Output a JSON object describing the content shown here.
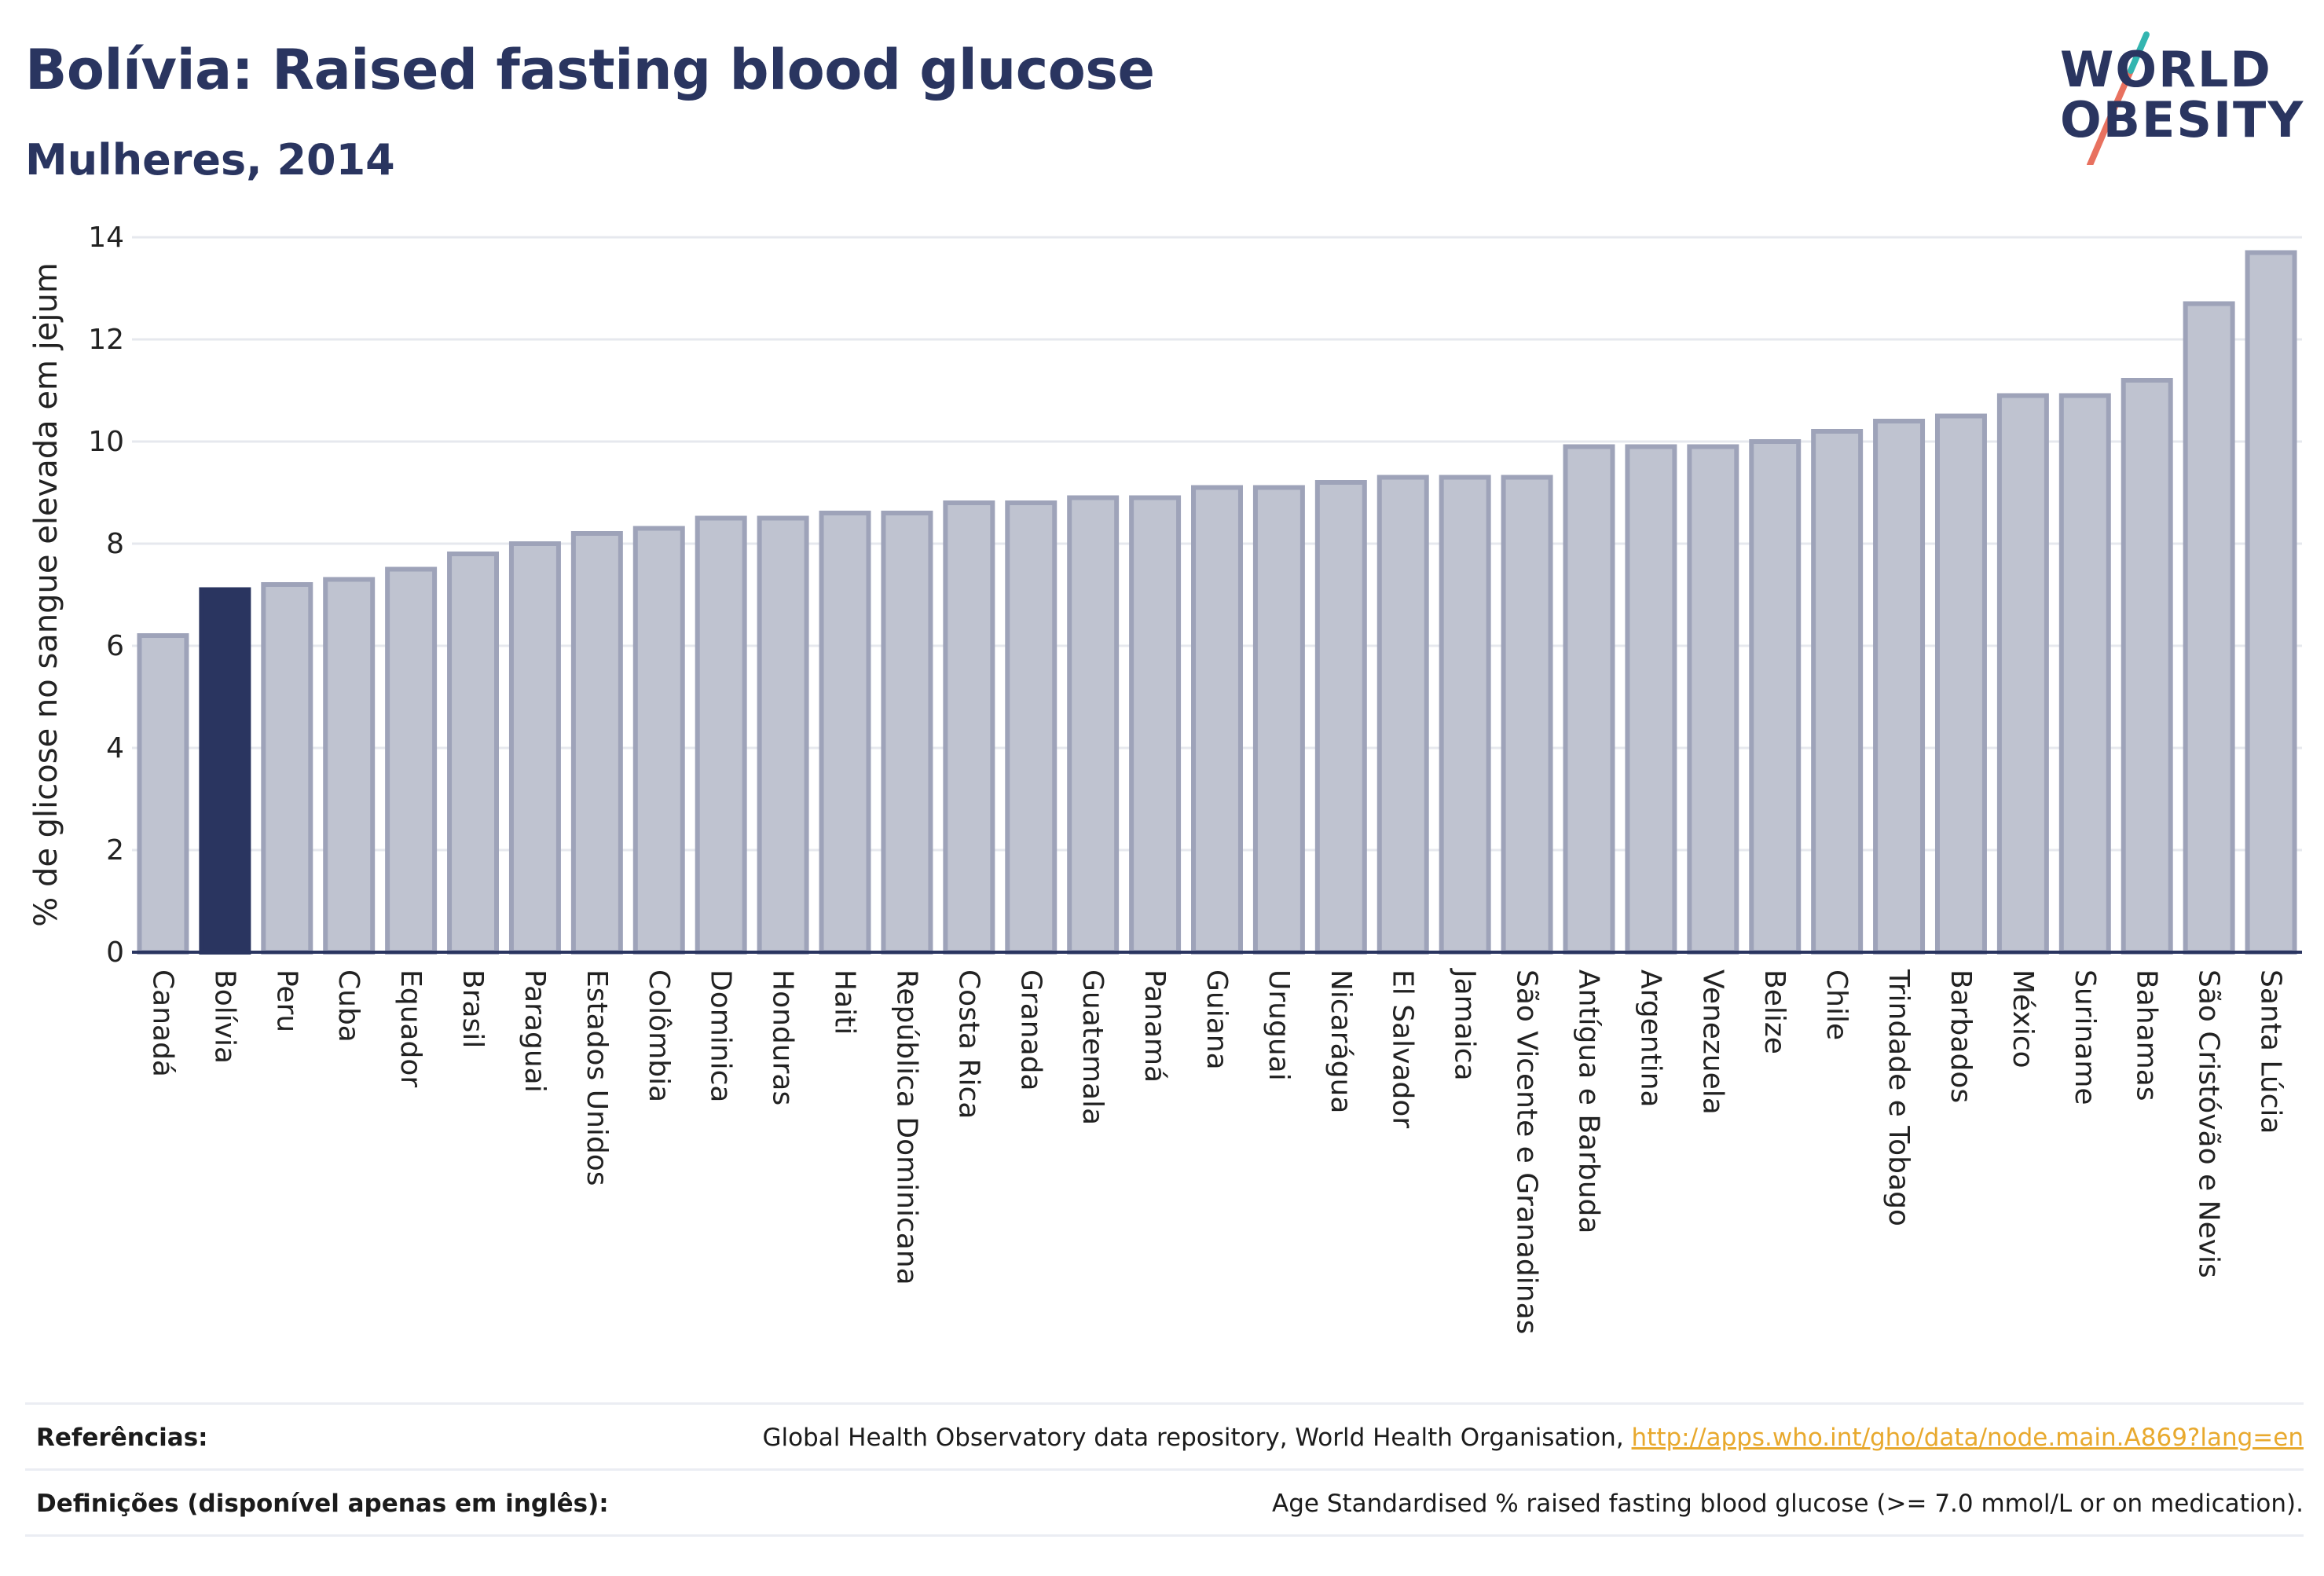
{
  "title": "Bolívia: Raised fasting blood glucose",
  "subtitle": "Mulheres, 2014",
  "logo": {
    "line1": "WORLD",
    "line2": "OBESITY"
  },
  "colors": {
    "highlight": "#2a3560",
    "bar_fill": "#bfc3d0",
    "bar_stroke": "#9ea3b9",
    "grid": "#e6e8ee",
    "logo_teal": "#33b5b0",
    "logo_coral": "#e8715f",
    "link": "#e8a92e"
  },
  "chart_data": {
    "type": "bar",
    "ylabel": "% de glicose no sangue elevada em jejum",
    "xlabel": "",
    "ylim": [
      0,
      14
    ],
    "yticks": [
      "0",
      "2",
      "4",
      "6",
      "8",
      "10",
      "12",
      "14"
    ],
    "highlight": "Bolívia",
    "categories": [
      "Canadá",
      "Bolívia",
      "Peru",
      "Cuba",
      "Equador",
      "Brasil",
      "Paraguai",
      "Estados Unidos",
      "Colômbia",
      "Dominica",
      "Honduras",
      "Haiti",
      "República Dominicana",
      "Costa Rica",
      "Granada",
      "Guatemala",
      "Panamá",
      "Guiana",
      "Uruguai",
      "Nicarágua",
      "El Salvador",
      "Jamaica",
      "São Vicente e Granadinas",
      "Antígua e Barbuda",
      "Argentina",
      "Venezuela",
      "Belize",
      "Chile",
      "Trindade e Tobago",
      "Barbados",
      "México",
      "Suriname",
      "Bahamas",
      "São Cristóvão e Nevis",
      "Santa Lúcia"
    ],
    "values": [
      6.2,
      7.1,
      7.2,
      7.3,
      7.5,
      7.8,
      8.0,
      8.2,
      8.3,
      8.5,
      8.5,
      8.6,
      8.6,
      8.8,
      8.8,
      8.9,
      8.9,
      9.1,
      9.1,
      9.2,
      9.3,
      9.3,
      9.3,
      9.9,
      9.9,
      9.9,
      10.0,
      10.2,
      10.4,
      10.5,
      10.9,
      10.9,
      11.2,
      12.7,
      13.7
    ],
    "grid": true,
    "legend": "none"
  },
  "footer": {
    "references_label": "Referências:",
    "references_text": "Global Health Observatory data repository, World Health Organisation, ",
    "references_link": "http://apps.who.int/gho/data/node.main.A869?lang=en",
    "definitions_label": "Definições (disponível apenas em inglês):",
    "definitions_text": "Age Standardised % raised fasting blood glucose (>= 7.0 mmol/L or on medication)."
  }
}
